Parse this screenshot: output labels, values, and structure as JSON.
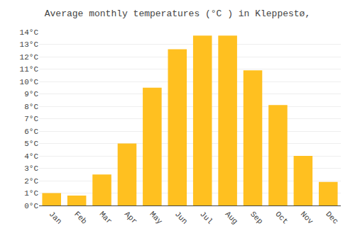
{
  "chart_data": {
    "type": "bar",
    "title": "Average monthly temperatures (°C ) in Kleppestø,",
    "categories": [
      "Jan",
      "Feb",
      "Mar",
      "Apr",
      "May",
      "Jun",
      "Jul",
      "Aug",
      "Sep",
      "Oct",
      "Nov",
      "Dec"
    ],
    "values": [
      1.0,
      0.8,
      2.5,
      5.0,
      9.5,
      12.6,
      13.7,
      13.7,
      10.9,
      8.1,
      4.0,
      1.9
    ],
    "color": "#FFC020",
    "ylim": [
      0,
      14
    ],
    "yticks": [
      {
        "value": 0,
        "label": "0°C"
      },
      {
        "value": 1,
        "label": "1°C"
      },
      {
        "value": 2,
        "label": "2°C"
      },
      {
        "value": 3,
        "label": "3°C"
      },
      {
        "value": 4,
        "label": "4°C"
      },
      {
        "value": 5,
        "label": "5°C"
      },
      {
        "value": 6,
        "label": "6°C"
      },
      {
        "value": 7,
        "label": "7°C"
      },
      {
        "value": 8,
        "label": "8°C"
      },
      {
        "value": 9,
        "label": "9°C"
      },
      {
        "value": 10,
        "label": "10°C"
      },
      {
        "value": 11,
        "label": "11°C"
      },
      {
        "value": 12,
        "label": "12°C"
      },
      {
        "value": 13,
        "label": "13°C"
      },
      {
        "value": 14,
        "label": "14°C"
      }
    ],
    "grid": true
  }
}
